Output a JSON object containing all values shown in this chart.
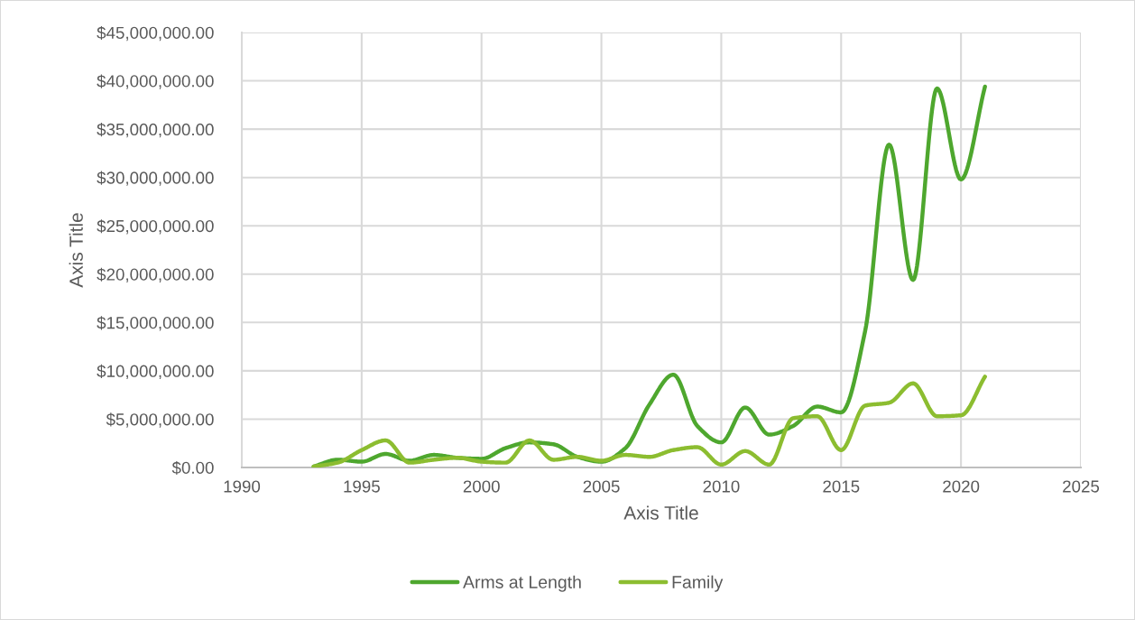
{
  "chart_data": {
    "type": "line",
    "xlabel": "Axis Title",
    "ylabel": "Axis Title",
    "x": [
      1993,
      1994,
      1995,
      1996,
      1997,
      1998,
      1999,
      2000,
      2001,
      2002,
      2003,
      2004,
      2005,
      2006,
      2007,
      2008,
      2009,
      2010,
      2011,
      2012,
      2013,
      2014,
      2015,
      2016,
      2017,
      2018,
      2019,
      2020,
      2021
    ],
    "series": [
      {
        "name": "Arms at Length",
        "color": "#4ea72e",
        "values": [
          100000,
          800000,
          600000,
          1400000,
          700000,
          1300000,
          1000000,
          900000,
          2000000,
          2600000,
          2400000,
          1100000,
          600000,
          2000000,
          6500000,
          9600000,
          4300000,
          2600000,
          6200000,
          3400000,
          4300000,
          6300000,
          5700000,
          14100000,
          33400000,
          19400000,
          39200000,
          29800000,
          39400000
        ]
      },
      {
        "name": "Family",
        "color": "#8cbd30",
        "values": [
          100000,
          500000,
          1800000,
          2800000,
          500000,
          800000,
          1000000,
          600000,
          500000,
          2800000,
          800000,
          1100000,
          700000,
          1300000,
          1100000,
          1800000,
          2100000,
          300000,
          1700000,
          300000,
          5100000,
          5300000,
          1800000,
          6400000,
          6700000,
          8700000,
          5300000,
          5400000,
          9400000
        ]
      }
    ],
    "xlim": [
      1990,
      2025
    ],
    "xticks": [
      1990,
      1995,
      2000,
      2005,
      2010,
      2015,
      2020,
      2025
    ],
    "ylim": [
      0,
      45000000
    ],
    "yticks": [
      {
        "value": 0,
        "label": "$0.00"
      },
      {
        "value": 5000000,
        "label": "$5,000,000.00"
      },
      {
        "value": 10000000,
        "label": "$10,000,000.00"
      },
      {
        "value": 15000000,
        "label": "$15,000,000.00"
      },
      {
        "value": 20000000,
        "label": "$20,000,000.00"
      },
      {
        "value": 25000000,
        "label": "$25,000,000.00"
      },
      {
        "value": 30000000,
        "label": "$30,000,000.00"
      },
      {
        "value": 35000000,
        "label": "$35,000,000.00"
      },
      {
        "value": 40000000,
        "label": "$40,000,000.00"
      },
      {
        "value": 45000000,
        "label": "$45,000,000.00"
      }
    ],
    "grid": true,
    "legend": "bottom",
    "line_style": "solid"
  }
}
